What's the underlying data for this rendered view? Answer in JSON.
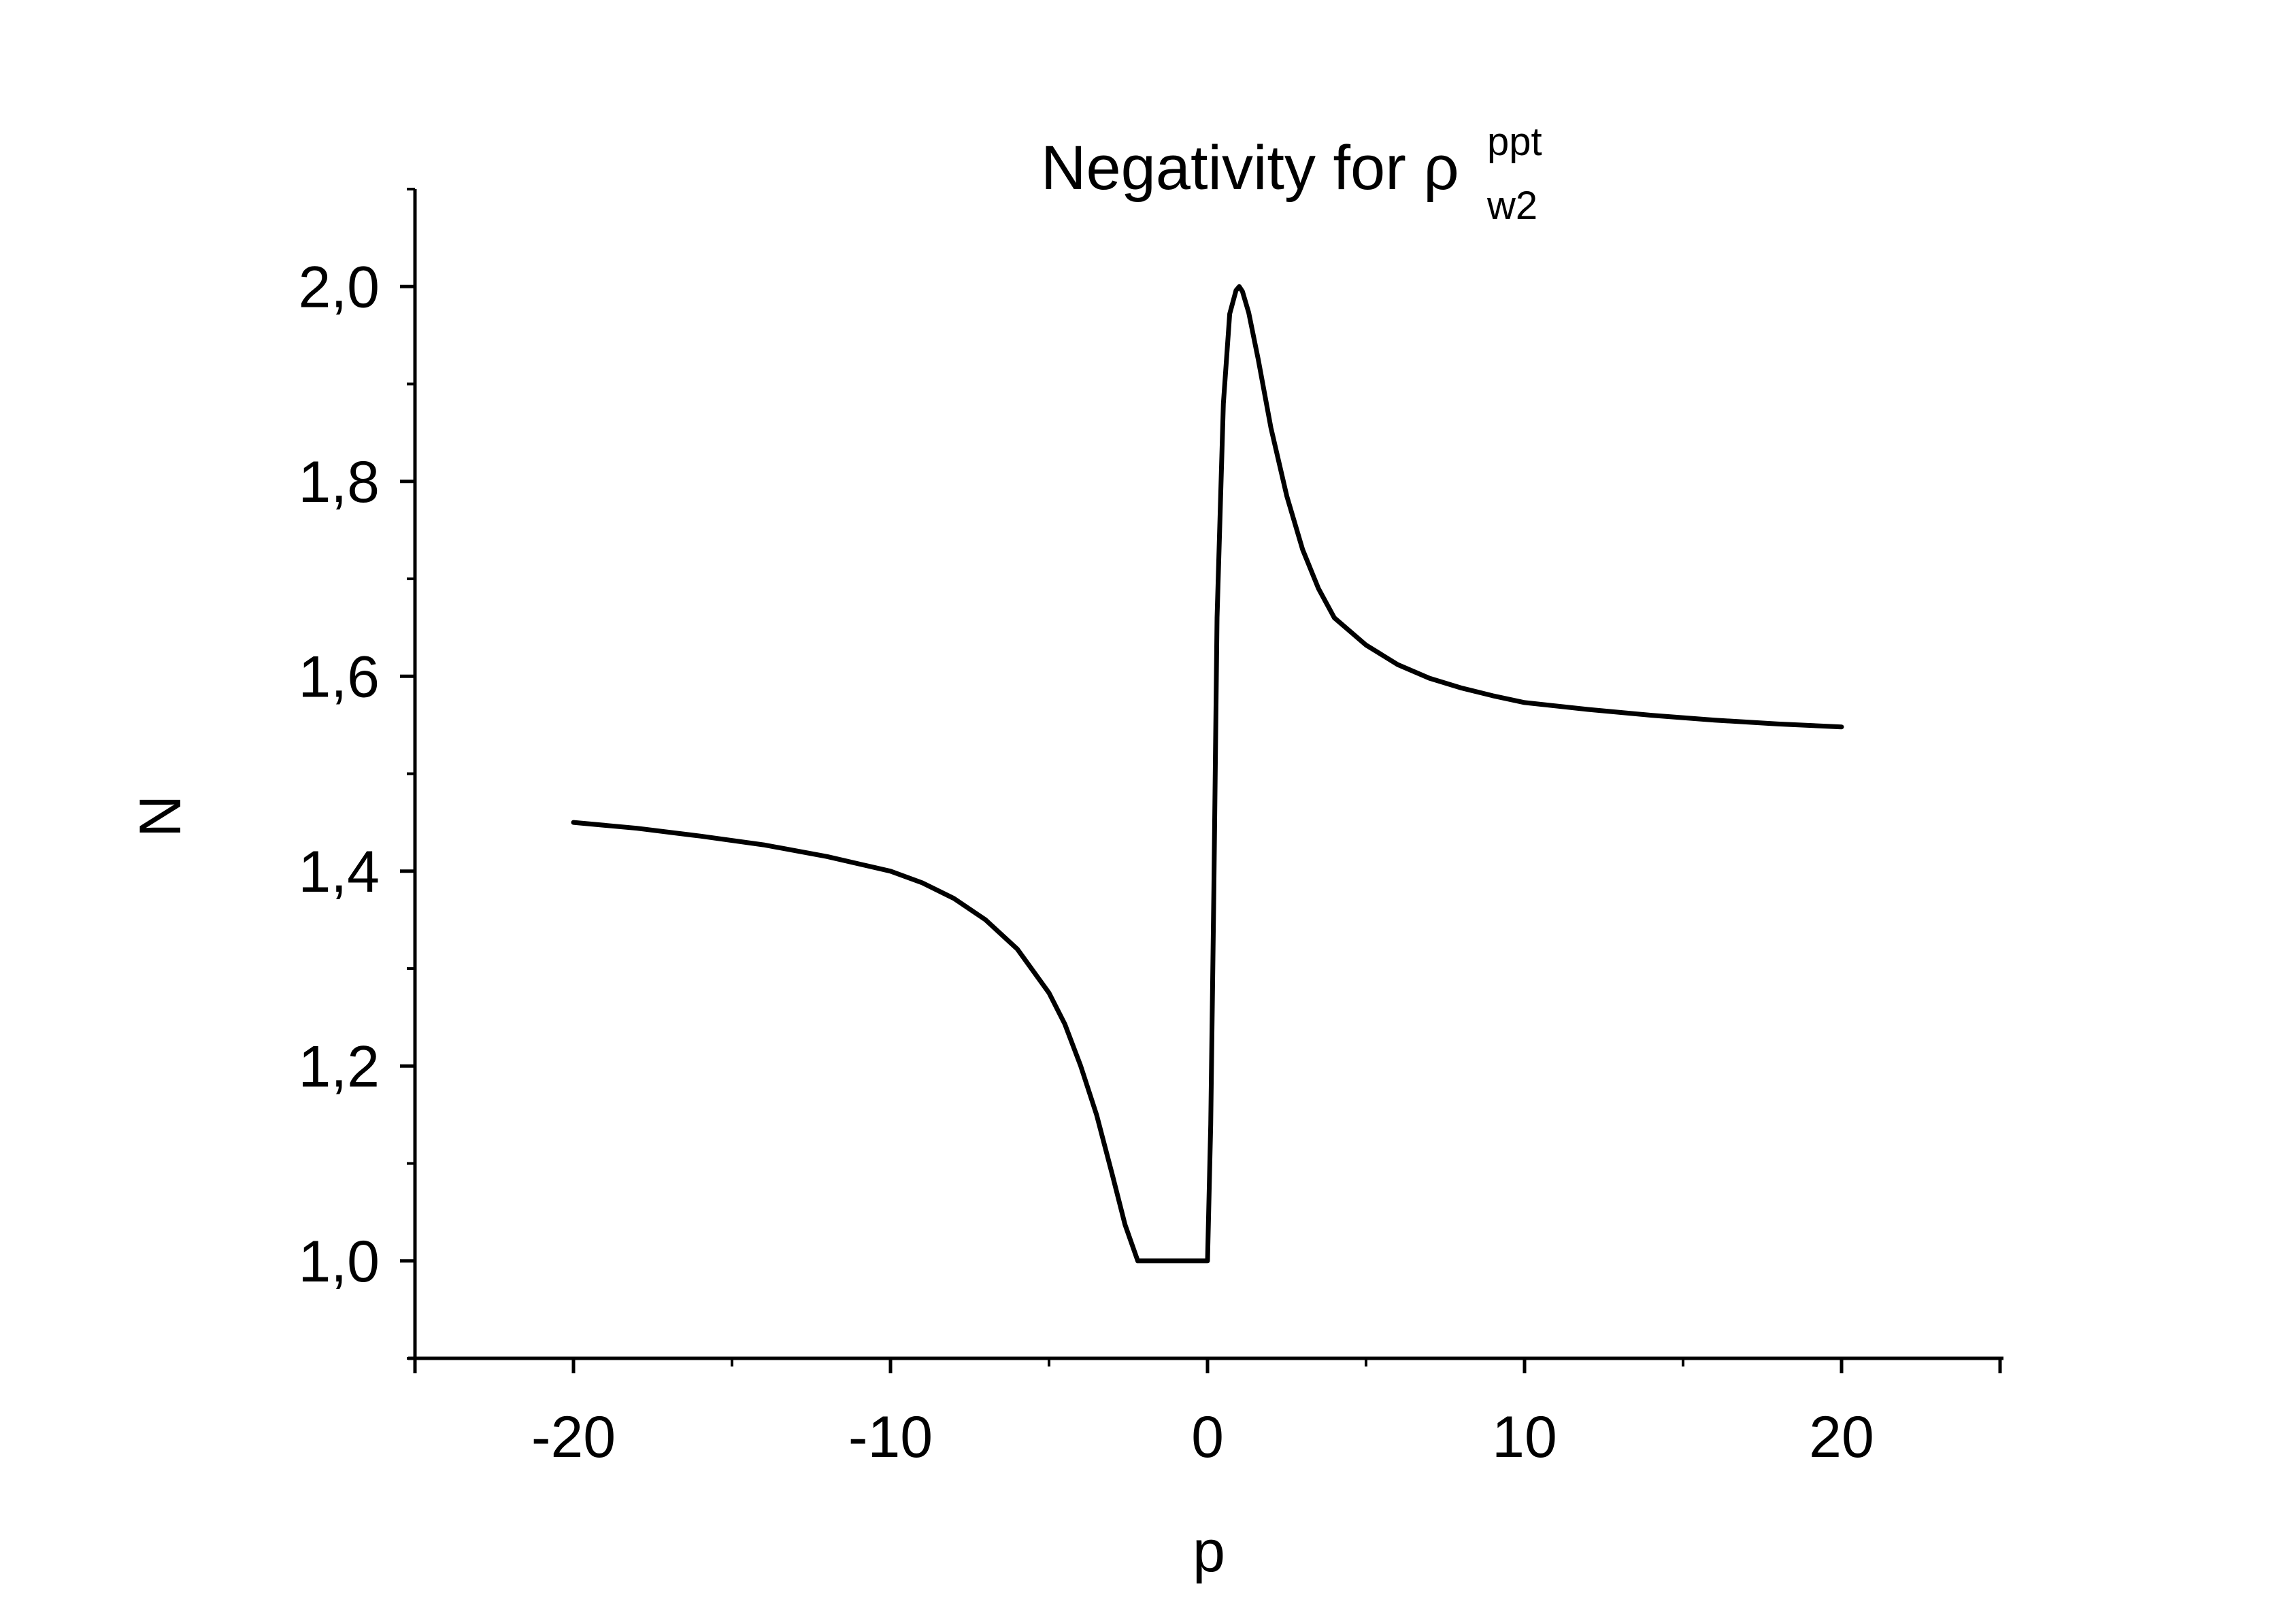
{
  "chart_data": {
    "type": "line",
    "title": {
      "text": "Negativity for ",
      "symbol": "ρ",
      "superscript": "ppt",
      "subscript": "w2"
    },
    "xlabel": "p",
    "ylabel": "N",
    "xlim": [
      -25,
      25
    ],
    "ylim": [
      0.9,
      2.1
    ],
    "x_ticks": [
      -20,
      -10,
      0,
      10,
      20
    ],
    "x_tick_labels": [
      "-20",
      "-10",
      "0",
      "10",
      "20"
    ],
    "y_ticks": [
      1.0,
      1.2,
      1.4,
      1.6,
      1.8,
      2.0
    ],
    "y_tick_labels": [
      "1,0",
      "1,2",
      "1,4",
      "1,6",
      "1,8",
      "2,0"
    ],
    "grid": false,
    "series": [
      {
        "color": "#000000",
        "x": [
          -20,
          -18,
          -16,
          -14,
          -12,
          -10,
          -9,
          -8,
          -7,
          -6,
          -5,
          -4.5,
          -4,
          -3.5,
          -3,
          -2.6,
          -2.2,
          -1.5,
          -1,
          -0.5,
          0,
          0.1,
          0.2,
          0.3,
          0.5,
          0.7,
          0.9,
          1.0,
          1.1,
          1.3,
          1.6,
          2,
          2.5,
          3,
          3.5,
          4,
          5,
          6,
          7,
          8,
          9,
          10,
          12,
          14,
          16,
          18,
          20
        ],
        "y": [
          1.45,
          1.444,
          1.436,
          1.427,
          1.415,
          1.4,
          1.388,
          1.372,
          1.35,
          1.32,
          1.275,
          1.243,
          1.2,
          1.15,
          1.088,
          1.037,
          1.0,
          1.0,
          1.0,
          1.0,
          1.0,
          1.14,
          1.38,
          1.66,
          1.88,
          1.972,
          1.996,
          2.0,
          1.995,
          1.973,
          1.925,
          1.855,
          1.785,
          1.73,
          1.69,
          1.66,
          1.632,
          1.612,
          1.598,
          1.588,
          1.58,
          1.573,
          1.566,
          1.56,
          1.555,
          1.551,
          1.548
        ]
      }
    ]
  }
}
